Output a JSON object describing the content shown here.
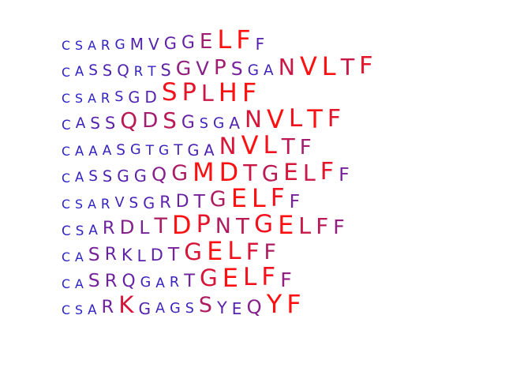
{
  "sequences": [
    {
      "residues": [
        {
          "char": "C",
          "weight": 0.05
        },
        {
          "char": "S",
          "weight": 0.05
        },
        {
          "char": "A",
          "weight": 0.05
        },
        {
          "char": "R",
          "weight": 0.1
        },
        {
          "char": "G",
          "weight": 0.12
        },
        {
          "char": "M",
          "weight": 0.3
        },
        {
          "char": "V",
          "weight": 0.3
        },
        {
          "char": "G",
          "weight": 0.35
        },
        {
          "char": "G",
          "weight": 0.4
        },
        {
          "char": "E",
          "weight": 0.65
        },
        {
          "char": "L",
          "weight": 1.0
        },
        {
          "char": "F",
          "weight": 1.0
        },
        {
          "char": "F",
          "weight": 0.3
        }
      ]
    },
    {
      "residues": [
        {
          "char": "C",
          "weight": 0.05
        },
        {
          "char": "A",
          "weight": 0.08
        },
        {
          "char": "S",
          "weight": 0.2
        },
        {
          "char": "S",
          "weight": 0.25
        },
        {
          "char": "Q",
          "weight": 0.28
        },
        {
          "char": "R",
          "weight": 0.08
        },
        {
          "char": "T",
          "weight": 0.12
        },
        {
          "char": "S",
          "weight": 0.35
        },
        {
          "char": "G",
          "weight": 0.6
        },
        {
          "char": "V",
          "weight": 0.55
        },
        {
          "char": "P",
          "weight": 0.65
        },
        {
          "char": "S",
          "weight": 0.5
        },
        {
          "char": "G",
          "weight": 0.2
        },
        {
          "char": "A",
          "weight": 0.2
        },
        {
          "char": "N",
          "weight": 0.8
        },
        {
          "char": "V",
          "weight": 1.0
        },
        {
          "char": "L",
          "weight": 1.0
        },
        {
          "char": "T",
          "weight": 0.8
        },
        {
          "char": "F",
          "weight": 0.9
        }
      ]
    },
    {
      "residues": [
        {
          "char": "C",
          "weight": 0.05
        },
        {
          "char": "S",
          "weight": 0.05
        },
        {
          "char": "A",
          "weight": 0.05
        },
        {
          "char": "R",
          "weight": 0.08
        },
        {
          "char": "S",
          "weight": 0.15
        },
        {
          "char": "G",
          "weight": 0.25
        },
        {
          "char": "D",
          "weight": 0.3
        },
        {
          "char": "S",
          "weight": 0.95
        },
        {
          "char": "P",
          "weight": 0.9
        },
        {
          "char": "L",
          "weight": 0.8
        },
        {
          "char": "H",
          "weight": 1.0
        },
        {
          "char": "F",
          "weight": 1.0
        }
      ]
    },
    {
      "residues": [
        {
          "char": "C",
          "weight": 0.1
        },
        {
          "char": "A",
          "weight": 0.2
        },
        {
          "char": "S",
          "weight": 0.3
        },
        {
          "char": "S",
          "weight": 0.35
        },
        {
          "char": "Q",
          "weight": 0.75
        },
        {
          "char": "D",
          "weight": 0.65
        },
        {
          "char": "S",
          "weight": 0.75
        },
        {
          "char": "G",
          "weight": 0.4
        },
        {
          "char": "S",
          "weight": 0.15
        },
        {
          "char": "G",
          "weight": 0.2
        },
        {
          "char": "A",
          "weight": 0.3
        },
        {
          "char": "N",
          "weight": 0.85
        },
        {
          "char": "V",
          "weight": 1.0
        },
        {
          "char": "L",
          "weight": 0.95
        },
        {
          "char": "T",
          "weight": 1.0
        },
        {
          "char": "F",
          "weight": 0.9
        }
      ]
    },
    {
      "residues": [
        {
          "char": "C",
          "weight": 0.05
        },
        {
          "char": "A",
          "weight": 0.08
        },
        {
          "char": "A",
          "weight": 0.1
        },
        {
          "char": "A",
          "weight": 0.12
        },
        {
          "char": "S",
          "weight": 0.2
        },
        {
          "char": "G",
          "weight": 0.15
        },
        {
          "char": "T",
          "weight": 0.12
        },
        {
          "char": "G",
          "weight": 0.12
        },
        {
          "char": "T",
          "weight": 0.2
        },
        {
          "char": "G",
          "weight": 0.25
        },
        {
          "char": "A",
          "weight": 0.25
        },
        {
          "char": "N",
          "weight": 0.85
        },
        {
          "char": "V",
          "weight": 1.0
        },
        {
          "char": "L",
          "weight": 0.95
        },
        {
          "char": "T",
          "weight": 0.75
        },
        {
          "char": "F",
          "weight": 0.65
        }
      ]
    },
    {
      "residues": [
        {
          "char": "C",
          "weight": 0.05
        },
        {
          "char": "A",
          "weight": 0.08
        },
        {
          "char": "S",
          "weight": 0.2
        },
        {
          "char": "S",
          "weight": 0.25
        },
        {
          "char": "G",
          "weight": 0.3
        },
        {
          "char": "G",
          "weight": 0.35
        },
        {
          "char": "Q",
          "weight": 0.55
        },
        {
          "char": "G",
          "weight": 0.7
        },
        {
          "char": "M",
          "weight": 1.0
        },
        {
          "char": "D",
          "weight": 1.0
        },
        {
          "char": "T",
          "weight": 0.8
        },
        {
          "char": "G",
          "weight": 0.75
        },
        {
          "char": "E",
          "weight": 0.85
        },
        {
          "char": "L",
          "weight": 0.8
        },
        {
          "char": "F",
          "weight": 0.9
        },
        {
          "char": "F",
          "weight": 0.5
        }
      ]
    },
    {
      "residues": [
        {
          "char": "C",
          "weight": 0.05
        },
        {
          "char": "S",
          "weight": 0.05
        },
        {
          "char": "A",
          "weight": 0.05
        },
        {
          "char": "R",
          "weight": 0.1
        },
        {
          "char": "V",
          "weight": 0.15
        },
        {
          "char": "S",
          "weight": 0.2
        },
        {
          "char": "G",
          "weight": 0.25
        },
        {
          "char": "R",
          "weight": 0.35
        },
        {
          "char": "D",
          "weight": 0.4
        },
        {
          "char": "T",
          "weight": 0.5
        },
        {
          "char": "G",
          "weight": 0.7
        },
        {
          "char": "E",
          "weight": 1.0
        },
        {
          "char": "L",
          "weight": 1.0
        },
        {
          "char": "F",
          "weight": 0.95
        },
        {
          "char": "F",
          "weight": 0.5
        }
      ]
    },
    {
      "residues": [
        {
          "char": "C",
          "weight": 0.1
        },
        {
          "char": "S",
          "weight": 0.1
        },
        {
          "char": "A",
          "weight": 0.12
        },
        {
          "char": "R",
          "weight": 0.45
        },
        {
          "char": "D",
          "weight": 0.55
        },
        {
          "char": "L",
          "weight": 0.5
        },
        {
          "char": "T",
          "weight": 0.7
        },
        {
          "char": "D",
          "weight": 1.0
        },
        {
          "char": "P",
          "weight": 0.9
        },
        {
          "char": "N",
          "weight": 0.7
        },
        {
          "char": "T",
          "weight": 0.75
        },
        {
          "char": "G",
          "weight": 0.95
        },
        {
          "char": "E",
          "weight": 1.0
        },
        {
          "char": "L",
          "weight": 0.8
        },
        {
          "char": "F",
          "weight": 0.75
        },
        {
          "char": "F",
          "weight": 0.6
        }
      ]
    },
    {
      "residues": [
        {
          "char": "C",
          "weight": 0.05
        },
        {
          "char": "A",
          "weight": 0.05
        },
        {
          "char": "S",
          "weight": 0.5
        },
        {
          "char": "R",
          "weight": 0.4
        },
        {
          "char": "K",
          "weight": 0.35
        },
        {
          "char": "L",
          "weight": 0.3
        },
        {
          "char": "D",
          "weight": 0.35
        },
        {
          "char": "T",
          "weight": 0.5
        },
        {
          "char": "G",
          "weight": 0.85
        },
        {
          "char": "E",
          "weight": 1.0
        },
        {
          "char": "L",
          "weight": 0.95
        },
        {
          "char": "F",
          "weight": 0.85
        },
        {
          "char": "F",
          "weight": 0.7
        }
      ]
    },
    {
      "residues": [
        {
          "char": "C",
          "weight": 0.05
        },
        {
          "char": "A",
          "weight": 0.05
        },
        {
          "char": "S",
          "weight": 0.5
        },
        {
          "char": "R",
          "weight": 0.45
        },
        {
          "char": "Q",
          "weight": 0.4
        },
        {
          "char": "G",
          "weight": 0.15
        },
        {
          "char": "A",
          "weight": 0.12
        },
        {
          "char": "R",
          "weight": 0.15
        },
        {
          "char": "T",
          "weight": 0.45
        },
        {
          "char": "G",
          "weight": 0.85
        },
        {
          "char": "E",
          "weight": 1.0
        },
        {
          "char": "L",
          "weight": 0.95
        },
        {
          "char": "F",
          "weight": 0.95
        },
        {
          "char": "F",
          "weight": 0.6
        }
      ]
    },
    {
      "residues": [
        {
          "char": "C",
          "weight": 0.05
        },
        {
          "char": "S",
          "weight": 0.05
        },
        {
          "char": "A",
          "weight": 0.1
        },
        {
          "char": "R",
          "weight": 0.45
        },
        {
          "char": "K",
          "weight": 0.85
        },
        {
          "char": "G",
          "weight": 0.3
        },
        {
          "char": "A",
          "weight": 0.15
        },
        {
          "char": "G",
          "weight": 0.15
        },
        {
          "char": "S",
          "weight": 0.15
        },
        {
          "char": "S",
          "weight": 0.7
        },
        {
          "char": "Y",
          "weight": 0.35
        },
        {
          "char": "E",
          "weight": 0.3
        },
        {
          "char": "Q",
          "weight": 0.55
        },
        {
          "char": "Y",
          "weight": 1.0
        },
        {
          "char": "F",
          "weight": 1.0
        }
      ]
    }
  ]
}
